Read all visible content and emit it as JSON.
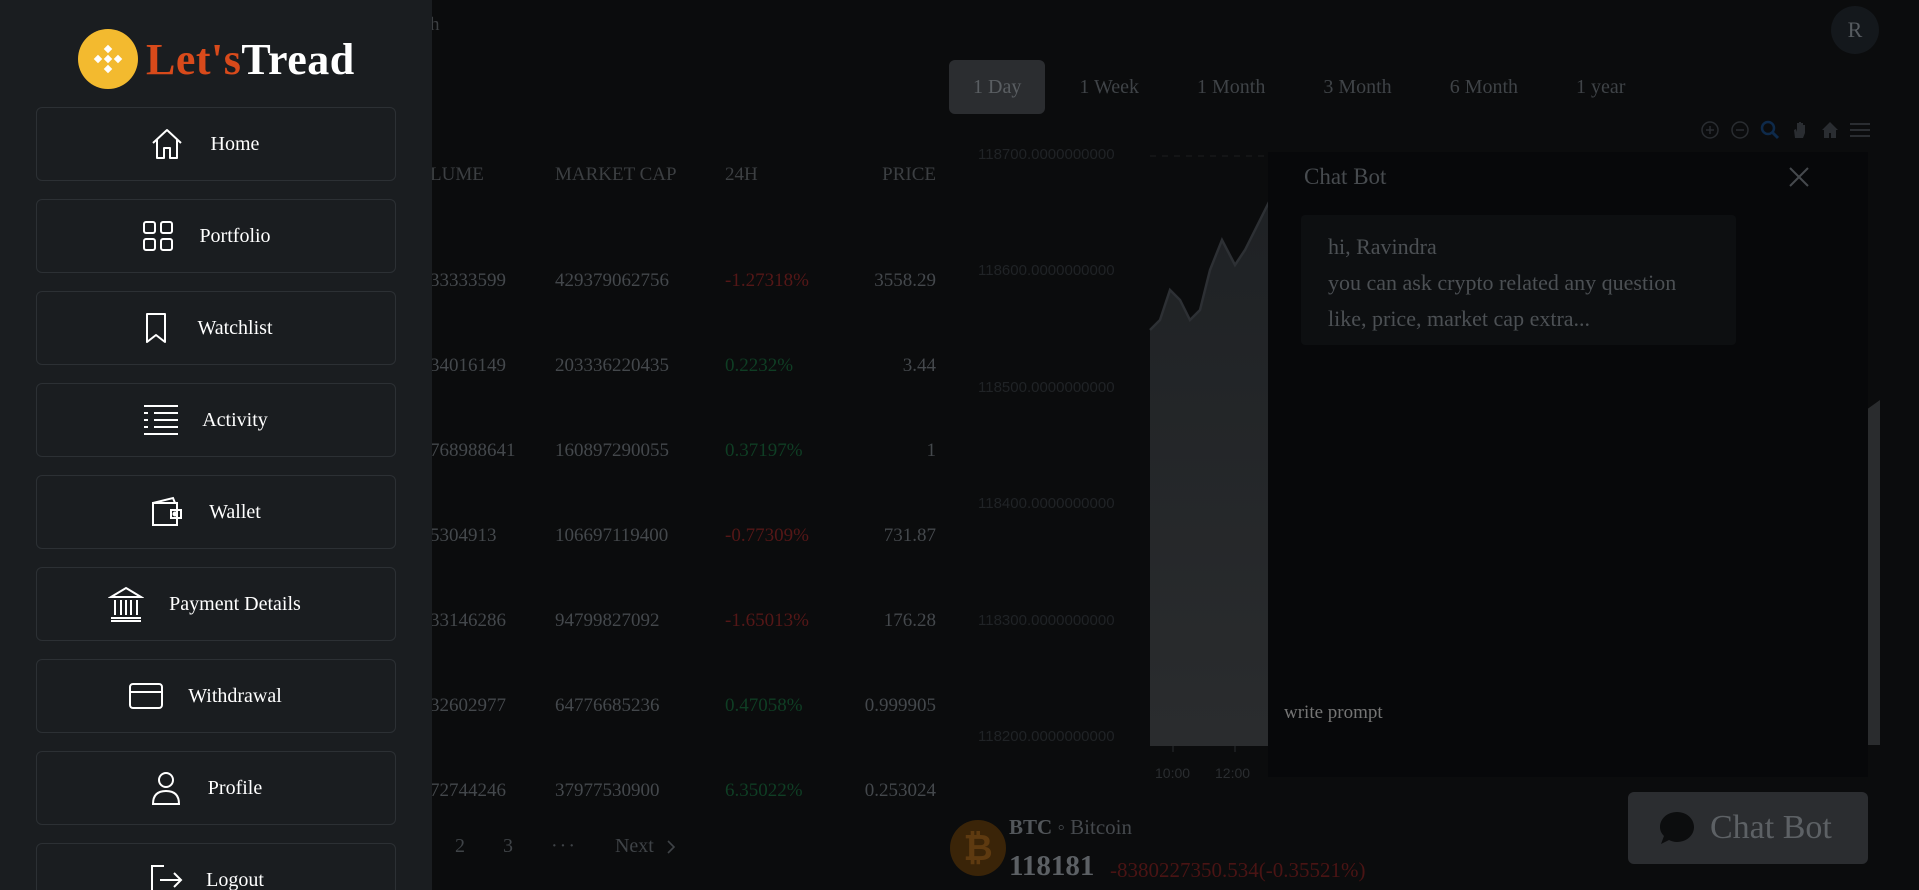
{
  "brand": {
    "prefix": "Let's",
    "name": "Tread",
    "logo_color": "#f3ba2f",
    "prefix_color": "#d84a1b"
  },
  "sidebar": {
    "items": [
      {
        "label": "Home",
        "icon": "home-icon"
      },
      {
        "label": "Portfolio",
        "icon": "grid-icon"
      },
      {
        "label": "Watchlist",
        "icon": "bookmark-icon"
      },
      {
        "label": "Activity",
        "icon": "activity-list-icon"
      },
      {
        "label": "Wallet",
        "icon": "wallet-icon"
      },
      {
        "label": "Payment Details",
        "icon": "bank-icon"
      },
      {
        "label": "Withdrawal",
        "icon": "credit-card-icon"
      },
      {
        "label": "Profile",
        "icon": "user-icon"
      },
      {
        "label": "Logout",
        "icon": "logout-icon"
      }
    ]
  },
  "header": {
    "search_fragment": "h",
    "avatar_initial": "R"
  },
  "time_tabs": [
    {
      "label": "1 Day",
      "active": true
    },
    {
      "label": "1 Week",
      "active": false
    },
    {
      "label": "1 Month",
      "active": false
    },
    {
      "label": "3 Month",
      "active": false
    },
    {
      "label": "6 Month",
      "active": false
    },
    {
      "label": "1 year",
      "active": false
    }
  ],
  "market_table": {
    "headers": {
      "volume": "LUME",
      "market_cap": "MARKET CAP",
      "change": "24H",
      "price": "PRICE"
    },
    "rows": [
      {
        "volume": "33333599",
        "market_cap": "429379062756",
        "change": "-1.27318%",
        "price": "3558.29",
        "positive": false
      },
      {
        "volume": "34016149",
        "market_cap": "203336220435",
        "change": "0.2232%",
        "price": "3.44",
        "positive": true
      },
      {
        "volume": "768988641",
        "market_cap": "160897290055",
        "change": "0.37197%",
        "price": "1",
        "positive": true
      },
      {
        "volume": "5304913",
        "market_cap": "106697119400",
        "change": "-0.77309%",
        "price": "731.87",
        "positive": false
      },
      {
        "volume": "33146286",
        "market_cap": "94799827092",
        "change": "-1.65013%",
        "price": "176.28",
        "positive": false
      },
      {
        "volume": "32602977",
        "market_cap": "64776685236",
        "change": "0.47058%",
        "price": "0.999905",
        "positive": true
      },
      {
        "volume": "72744246",
        "market_cap": "37977530900",
        "change": "6.35022%",
        "price": "0.253024",
        "positive": true
      }
    ]
  },
  "pagination": {
    "pages": [
      "2",
      "3"
    ],
    "ellipsis": "···",
    "next_label": "Next"
  },
  "chart_data": {
    "type": "area",
    "y_ticks": [
      "118700.0000000000",
      "118600.0000000000",
      "118500.0000000000",
      "118400.0000000000",
      "118300.0000000000",
      "118200.0000000000"
    ],
    "x_ticks": [
      "10:00",
      "12:00"
    ],
    "color": "#2a2d30"
  },
  "coin": {
    "symbol": "BTC",
    "separator": "◦",
    "name": "Bitcoin",
    "price": "118181",
    "change": "-8380227350.534(-0.35521%)",
    "logo_glyph": "₿"
  },
  "chat": {
    "title": "Chat Bot",
    "greeting": "hi, Ravindra",
    "message": "you can ask crypto related any question like, price, market cap extra...",
    "input_placeholder": "write prompt",
    "fab_label": "Chat Bot"
  }
}
